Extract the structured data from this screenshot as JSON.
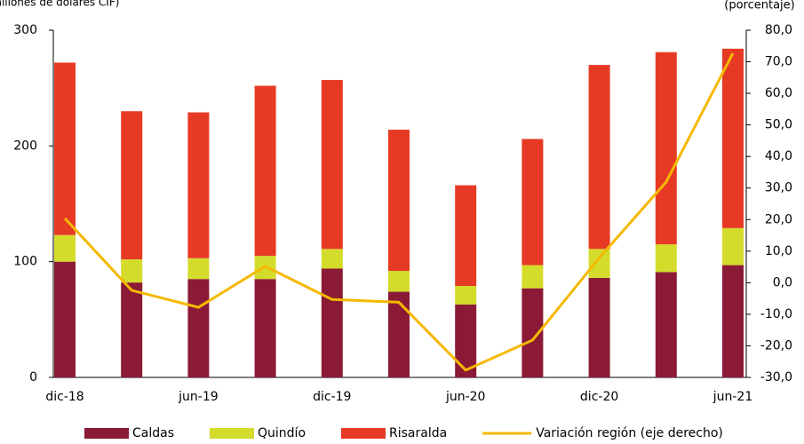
{
  "chart_data": {
    "type": "bar",
    "y_title": "(millones de dólares CIF)",
    "y2_title": "(porcentaje)",
    "categories": [
      "dic-18",
      null,
      "jun-19",
      null,
      "dic-19",
      null,
      "jun-20",
      null,
      "dic-20",
      null,
      "jun-21"
    ],
    "stacked": true,
    "series": [
      {
        "name": "Caldas",
        "color": "#8b1a36",
        "values": [
          100,
          82,
          85,
          85,
          94,
          74,
          63,
          77,
          86,
          91,
          97
        ]
      },
      {
        "name": "Quindío",
        "color": "#d4dc2b",
        "values": [
          23,
          20,
          18,
          20,
          17,
          18,
          16,
          20,
          25,
          24,
          32
        ]
      },
      {
        "name": "Risaralda",
        "color": "#e63a25",
        "values": [
          149,
          128,
          126,
          147,
          146,
          122,
          87,
          109,
          159,
          166,
          155
        ]
      },
      {
        "name": "Variación región (eje derecho)",
        "color": "#f5b800",
        "type": "line",
        "axis": "y2",
        "values": [
          20.4,
          -2.4,
          -7.8,
          5.2,
          -5.3,
          -6.2,
          -27.7,
          -18.2,
          7.9,
          31.9,
          72.7
        ]
      }
    ],
    "ylim": [
      0,
      300
    ],
    "yticks": [
      0,
      100,
      200,
      300
    ],
    "y2lim": [
      -30,
      80
    ],
    "y2ticks": [
      {
        "value": -30,
        "label": "-30,0"
      },
      {
        "value": -20,
        "label": "-20,0"
      },
      {
        "value": -10,
        "label": "-10,0"
      },
      {
        "value": 0,
        "label": "0,0"
      },
      {
        "value": 10,
        "label": "10,0"
      },
      {
        "value": 20,
        "label": "20,0"
      },
      {
        "value": 30,
        "label": "30,0"
      },
      {
        "value": 40,
        "label": "40,0"
      },
      {
        "value": 50,
        "label": "50,0"
      },
      {
        "value": 60,
        "label": "60,0"
      },
      {
        "value": 70,
        "label": "70,0"
      },
      {
        "value": 80,
        "label": "80,0"
      }
    ],
    "legend": "bottom"
  }
}
